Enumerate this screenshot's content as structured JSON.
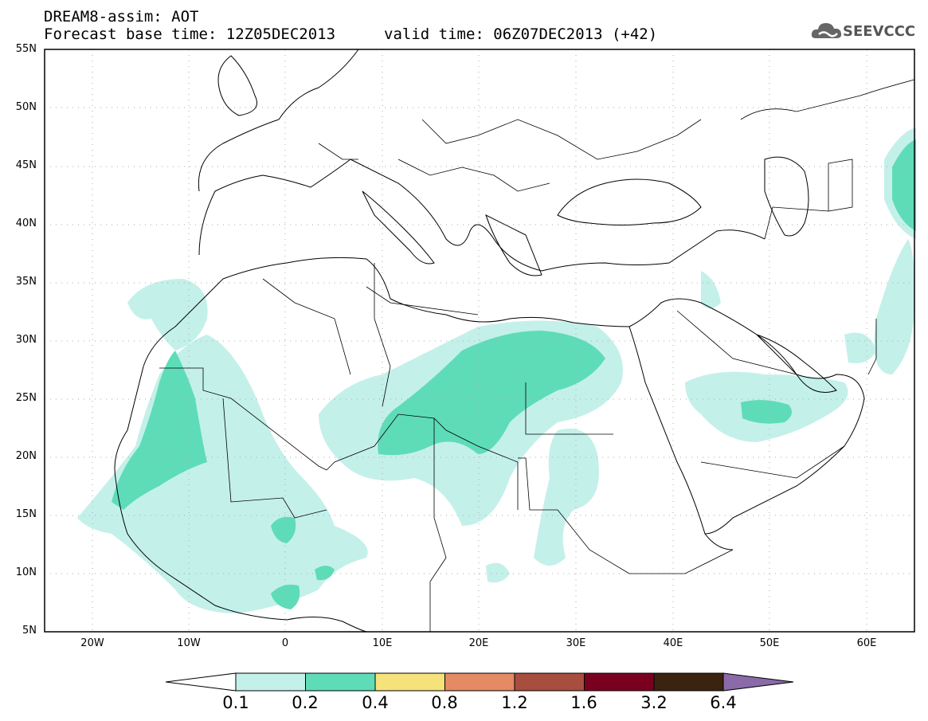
{
  "title": {
    "line1": "DREAM8-assim: AOT",
    "line2": "Forecast base time: 12Z05DEC2013",
    "line3": "valid time: 06Z07DEC2013 (+42)"
  },
  "logo": {
    "text": "SEEVCCC",
    "icon": "cloud-icon"
  },
  "map": {
    "lat_labels": [
      "55N",
      "50N",
      "45N",
      "40N",
      "35N",
      "30N",
      "25N",
      "20N",
      "15N",
      "10N",
      "5N"
    ],
    "lon_labels": [
      "20W",
      "10W",
      "0",
      "10E",
      "20E",
      "30E",
      "40E",
      "50E",
      "60E"
    ],
    "lon_range": [
      -25,
      65
    ],
    "lat_range": [
      5,
      55
    ],
    "colors": {
      "aot_01_02": "#c4f0ea",
      "aot_02_04": "#5edcb8",
      "border": "#000000",
      "grid": "#aaaaaa"
    }
  },
  "colorbar": {
    "labels": [
      "0.1",
      "0.2",
      "0.4",
      "0.8",
      "1.2",
      "1.6",
      "3.2",
      "6.4"
    ],
    "colors": [
      "#c4f0ea",
      "#5edcb8",
      "#f5e27a",
      "#e48a65",
      "#a84e3e",
      "#7a0020",
      "#3a2410",
      "#8a6aa8"
    ]
  }
}
